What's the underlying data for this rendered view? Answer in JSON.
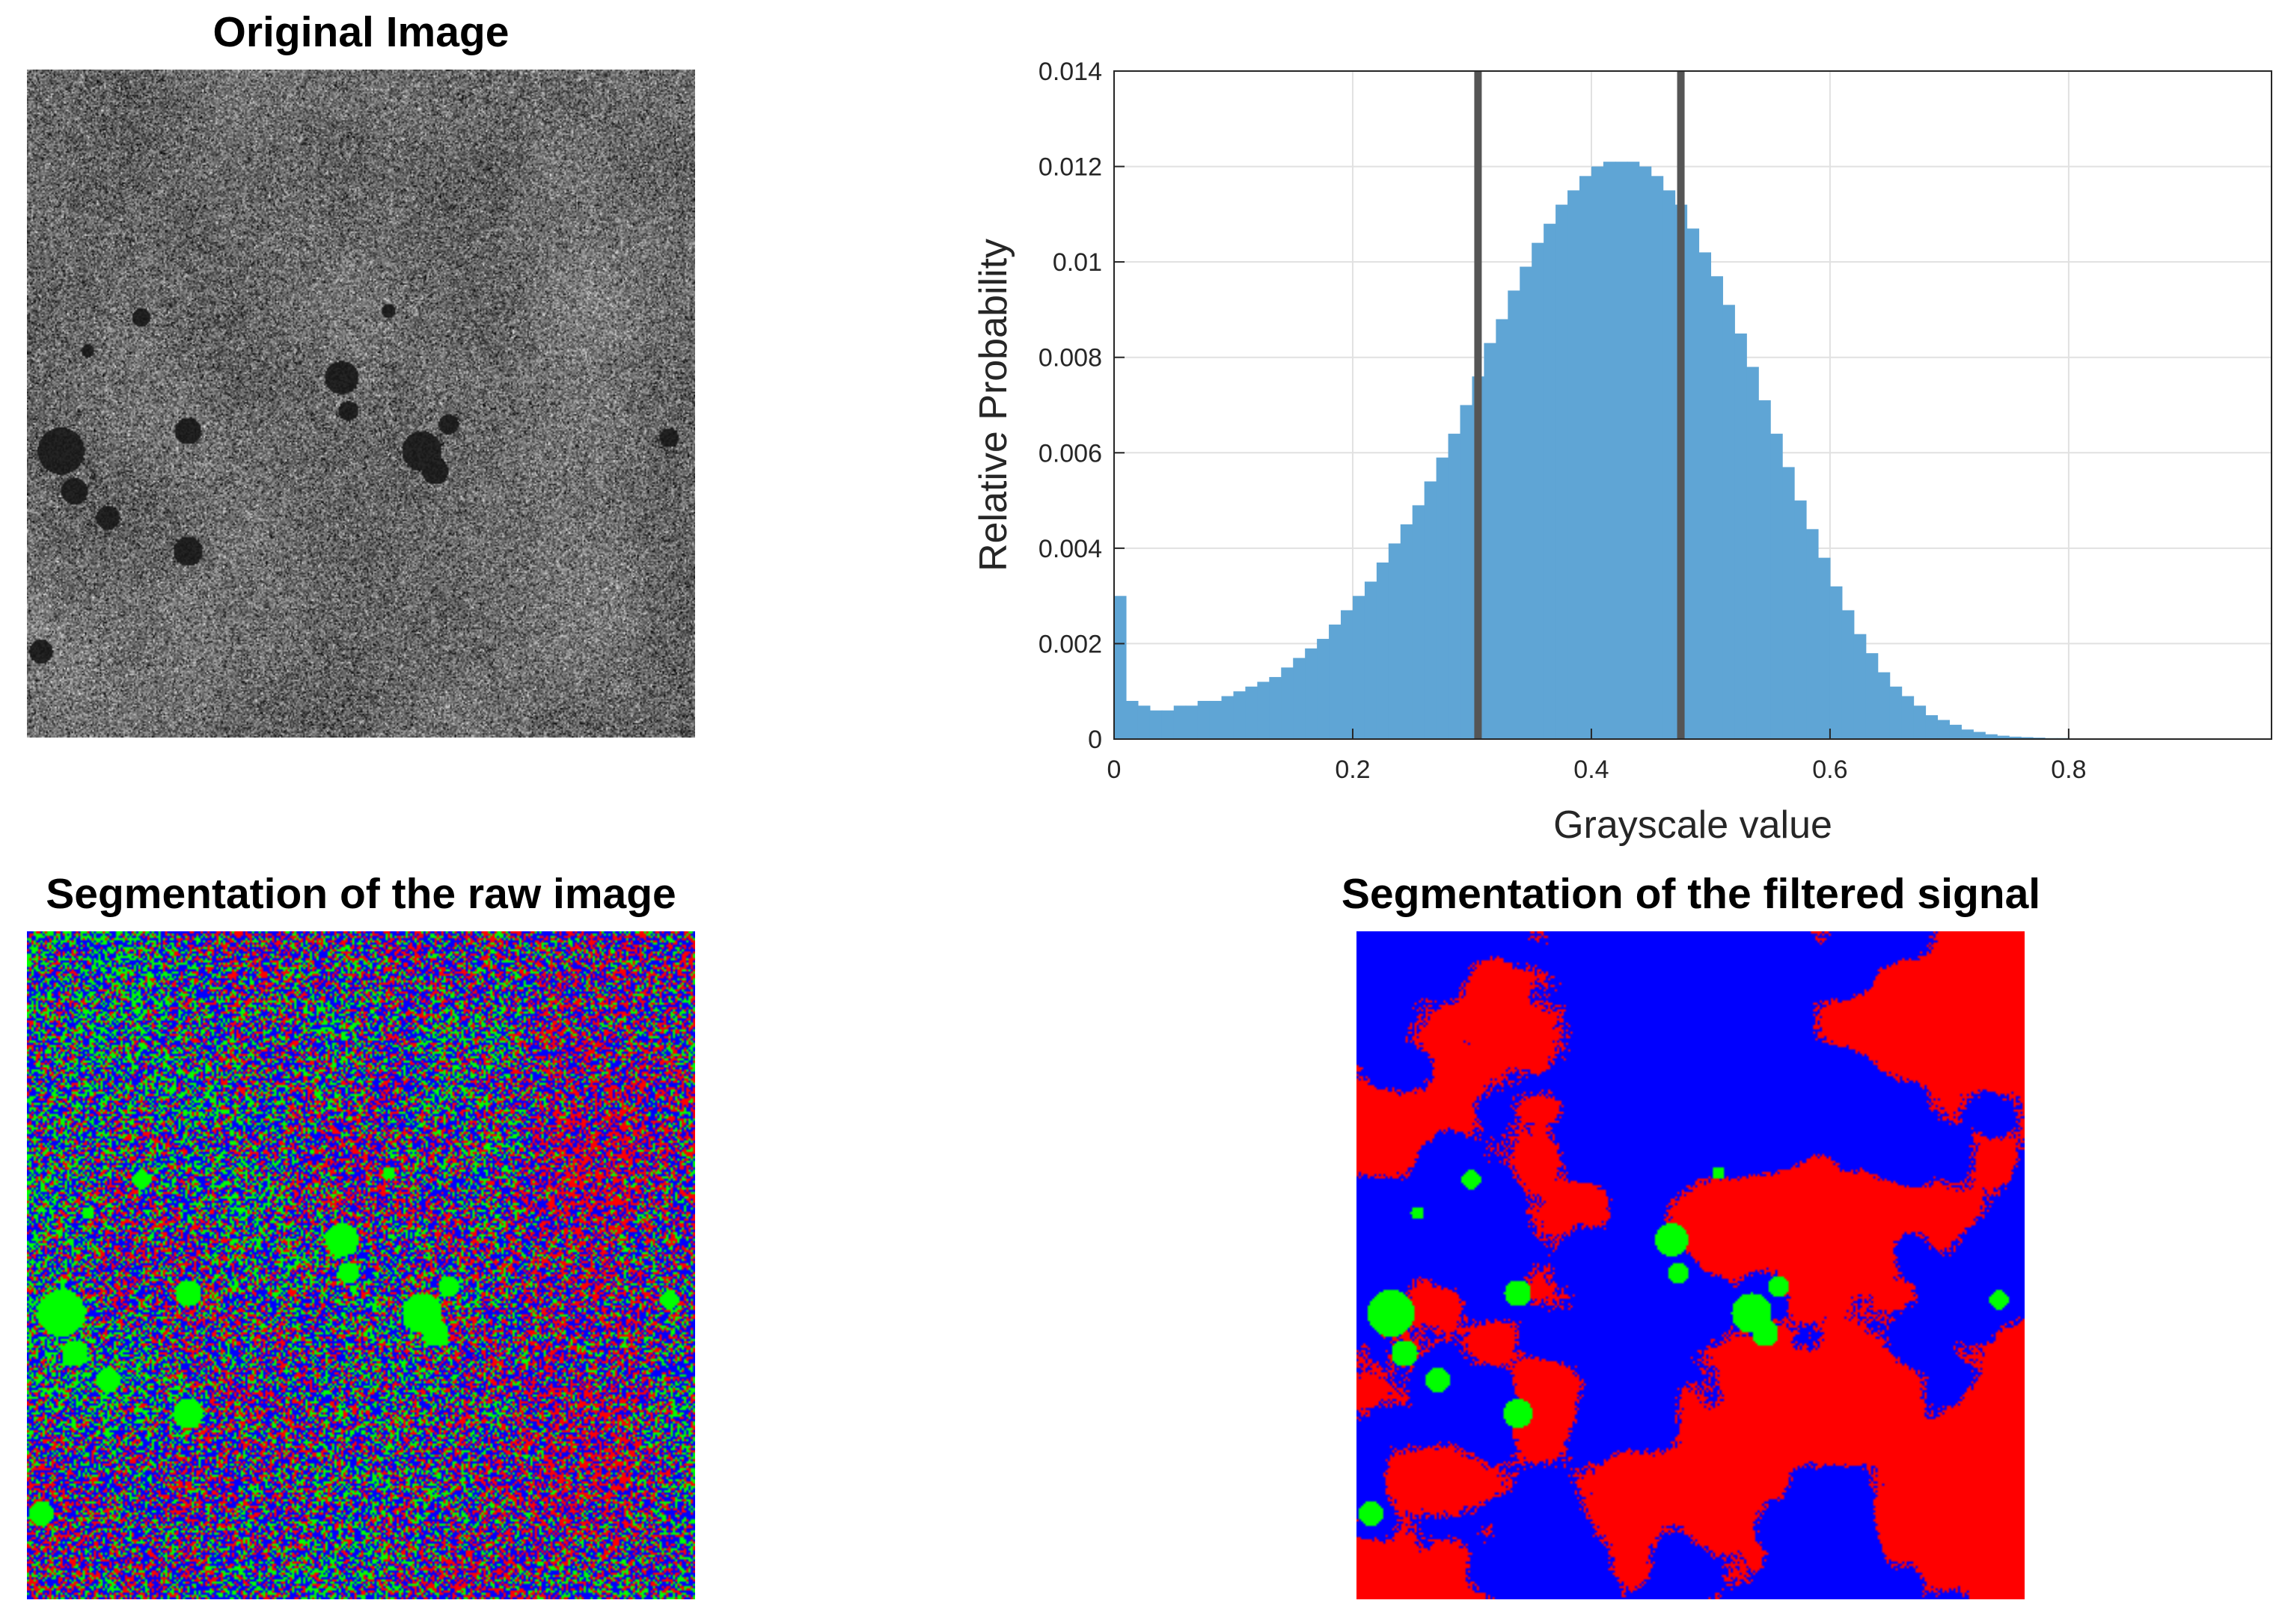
{
  "panels": {
    "original_title": "Original Image",
    "raw_seg_title": "Segmentation of the raw image",
    "filtered_seg_title": "Segmentation of the filtered signal"
  },
  "segmentation_colors": {
    "low": "#00ff00",
    "mid": "#0000ff",
    "high": "#ff0000"
  },
  "chart_data": {
    "type": "bar",
    "title": "",
    "xlabel": "Grayscale value",
    "ylabel": "Relative Probability",
    "xlim": [
      0,
      0.97
    ],
    "ylim": [
      0,
      0.014
    ],
    "xticks": [
      0,
      0.2,
      0.4,
      0.6,
      0.8
    ],
    "xtick_labels": [
      "0",
      "0.2",
      "0.4",
      "0.6",
      "0.8"
    ],
    "yticks": [
      0,
      0.002,
      0.004,
      0.006,
      0.008,
      0.01,
      0.012,
      0.014
    ],
    "ytick_labels": [
      "0",
      "0.002",
      "0.004",
      "0.006",
      "0.008",
      "0.01",
      "0.012",
      "0.014"
    ],
    "grid": true,
    "bar_color": "#5fa5d5",
    "threshold_color": "#555555",
    "thresholds": [
      0.305,
      0.475
    ],
    "x": [
      0.0,
      0.01,
      0.02,
      0.03,
      0.04,
      0.05,
      0.06,
      0.07,
      0.08,
      0.09,
      0.1,
      0.11,
      0.12,
      0.13,
      0.14,
      0.15,
      0.16,
      0.17,
      0.18,
      0.19,
      0.2,
      0.21,
      0.22,
      0.23,
      0.24,
      0.25,
      0.26,
      0.27,
      0.28,
      0.29,
      0.3,
      0.31,
      0.32,
      0.33,
      0.34,
      0.35,
      0.36,
      0.37,
      0.38,
      0.39,
      0.4,
      0.41,
      0.42,
      0.43,
      0.44,
      0.45,
      0.46,
      0.47,
      0.48,
      0.49,
      0.5,
      0.51,
      0.52,
      0.53,
      0.54,
      0.55,
      0.56,
      0.57,
      0.58,
      0.59,
      0.6,
      0.61,
      0.62,
      0.63,
      0.64,
      0.65,
      0.66,
      0.67,
      0.68,
      0.69,
      0.7,
      0.71,
      0.72,
      0.73,
      0.74,
      0.75,
      0.76,
      0.77,
      0.78,
      0.79,
      0.8,
      0.81,
      0.82,
      0.83,
      0.84,
      0.85,
      0.86,
      0.87,
      0.88,
      0.89,
      0.9,
      0.91,
      0.92,
      0.93,
      0.94,
      0.95,
      0.96
    ],
    "values": [
      0.003,
      0.0008,
      0.0007,
      0.0006,
      0.0006,
      0.0007,
      0.0007,
      0.0008,
      0.0008,
      0.0009,
      0.001,
      0.0011,
      0.0012,
      0.0013,
      0.0015,
      0.0017,
      0.0019,
      0.0021,
      0.0024,
      0.0027,
      0.003,
      0.0033,
      0.0037,
      0.0041,
      0.0045,
      0.0049,
      0.0054,
      0.0059,
      0.0064,
      0.007,
      0.0076,
      0.0083,
      0.0088,
      0.0094,
      0.0099,
      0.0104,
      0.0108,
      0.0112,
      0.0115,
      0.0118,
      0.012,
      0.0121,
      0.0121,
      0.0121,
      0.012,
      0.0118,
      0.0115,
      0.0112,
      0.0107,
      0.0102,
      0.0097,
      0.0091,
      0.0085,
      0.0078,
      0.0071,
      0.0064,
      0.0057,
      0.005,
      0.0044,
      0.0038,
      0.0032,
      0.0027,
      0.0022,
      0.0018,
      0.0014,
      0.0011,
      0.0009,
      0.0007,
      0.0005,
      0.0004,
      0.0003,
      0.0002,
      0.00015,
      0.0001,
      7e-05,
      5e-05,
      4e-05,
      3e-05,
      2e-05,
      2e-05,
      1e-05,
      1e-05,
      1e-05,
      5e-06,
      5e-06,
      3e-06,
      2e-06,
      2e-06,
      1e-06,
      1e-06,
      1e-06,
      0.0,
      0.0,
      0.0,
      0.0,
      0.0,
      0.0
    ]
  }
}
